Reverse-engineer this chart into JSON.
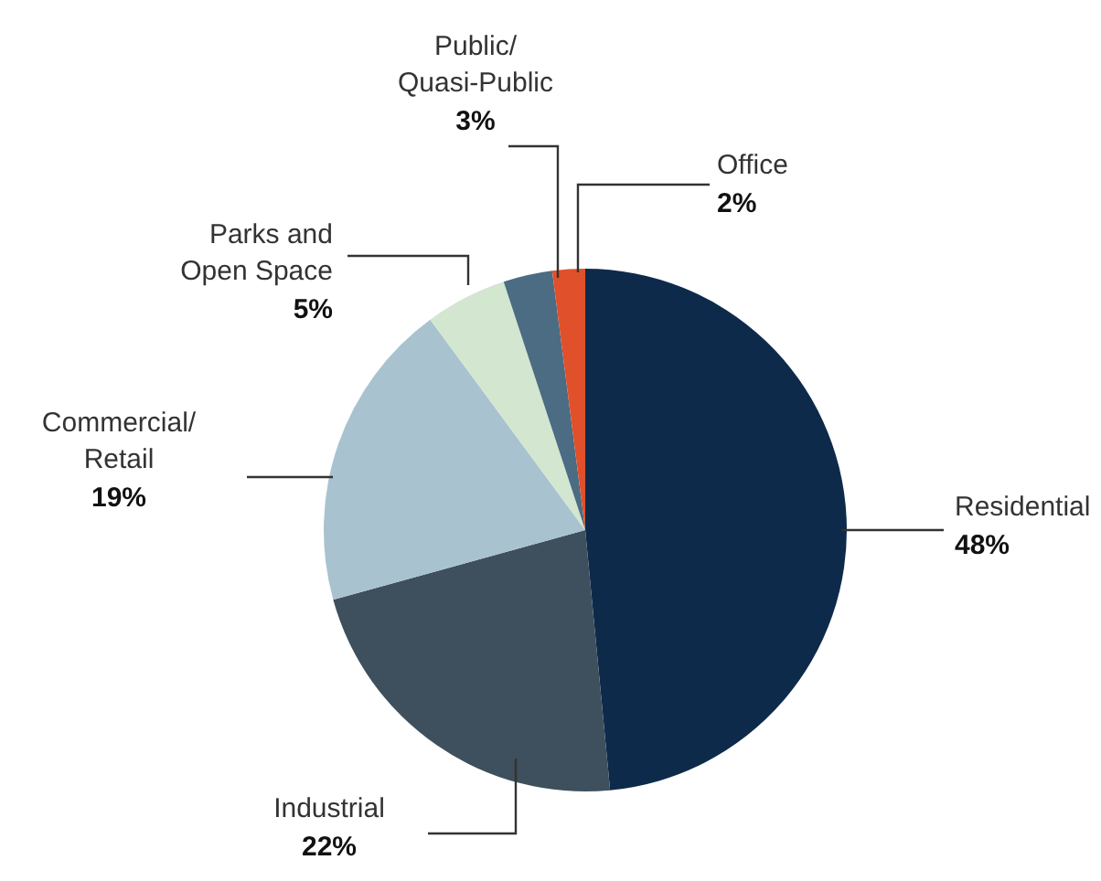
{
  "chart_data": {
    "type": "pie",
    "categories": [
      "Residential",
      "Industrial",
      "Commercial/Retail",
      "Parks and Open Space",
      "Public/Quasi-Public",
      "Office"
    ],
    "values": [
      48,
      22,
      19,
      5,
      3,
      2
    ],
    "value_labels": [
      "48%",
      "22%",
      "19%",
      "5%",
      "3%",
      "2%"
    ],
    "colors": [
      "#0e2a4b",
      "#3e505d",
      "#a8c3cf",
      "#d3e6d0",
      "#4b6c82",
      "#e0502a"
    ]
  }
}
